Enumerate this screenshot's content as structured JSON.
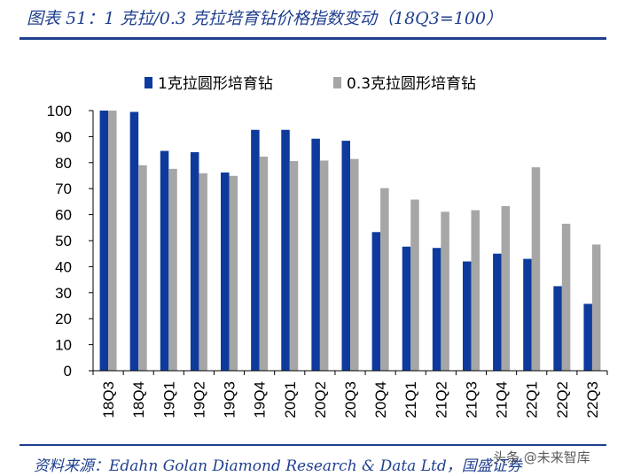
{
  "header": {
    "title": "图表 51：1 克拉/0.3 克拉培育钻价格指数变动（18Q3=100）"
  },
  "footer": {
    "source": "资料来源：Edahn Golan Diamond Research & Data Ltd，国盛证券",
    "watermark": "头条 @未来智库"
  },
  "chart_data": {
    "type": "bar",
    "title": "图表 51：1 克拉/0.3 克拉培育钻价格指数变动（18Q3=100）",
    "xlabel": "",
    "ylabel": "",
    "ylim": [
      0,
      100
    ],
    "yticks": [
      0,
      10,
      20,
      30,
      40,
      50,
      60,
      70,
      80,
      90,
      100
    ],
    "grid": false,
    "legend_position": "top",
    "categories": [
      "18Q3",
      "18Q4",
      "19Q1",
      "19Q2",
      "19Q3",
      "19Q4",
      "20Q1",
      "20Q2",
      "20Q3",
      "20Q4",
      "21Q1",
      "21Q2",
      "21Q3",
      "21Q4",
      "22Q1",
      "22Q2",
      "22Q3"
    ],
    "series": [
      {
        "name": "1克拉圆形培育钻",
        "color": "#0d3a9c",
        "values": [
          100,
          99.5,
          84.5,
          84,
          76.2,
          92.6,
          92.6,
          89.2,
          88.4,
          53.3,
          47.7,
          47.2,
          42,
          45,
          43,
          32.5,
          25.7
        ]
      },
      {
        "name": "0.3克拉圆形培育钻",
        "color": "#a6a6a6",
        "values": [
          100,
          79,
          77.6,
          75.9,
          74.9,
          82.3,
          80.6,
          80.8,
          81.4,
          70.2,
          65.8,
          61.1,
          61.7,
          63.3,
          78.2,
          56.5,
          48.5
        ]
      }
    ]
  }
}
